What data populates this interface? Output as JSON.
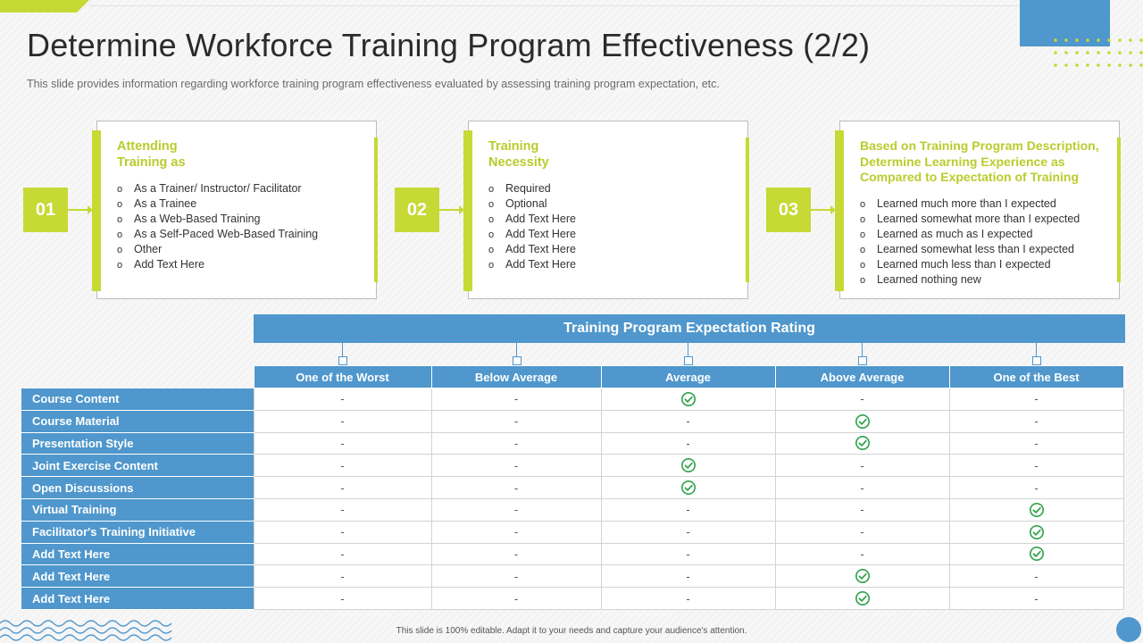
{
  "title": "Determine Workforce Training Program Effectiveness (2/2)",
  "subtitle": "This slide provides  information  regarding  workforce  training  program  effectiveness  evaluated  by assessing training program expectation, etc.",
  "colors": {
    "accent_green": "#c6d935",
    "accent_blue": "#4f97cc",
    "check_green": "#2fa24a"
  },
  "cards": [
    {
      "number": "01",
      "title_lines": [
        "Attending",
        "Training as"
      ],
      "items": [
        "As a Trainer/  Instructor/ Facilitator",
        "As a Trainee",
        "As a Web-Based Training",
        "As a Self-Paced Web-Based Training",
        "Other",
        "Add Text Here"
      ]
    },
    {
      "number": "02",
      "title_lines": [
        "Training",
        "Necessity"
      ],
      "items": [
        "Required",
        "Optional",
        "Add Text Here",
        "Add Text Here",
        "Add Text Here",
        "Add Text Here"
      ]
    },
    {
      "number": "03",
      "title_lines": [
        "Based on Training Program Description,",
        "Determine Learning Experience as",
        "Compared to Expectation of Training"
      ],
      "items": [
        "Learned much more than I expected",
        "Learned somewhat more than I expected",
        "Learned as much as I expected",
        "Learned somewhat less than I expected",
        "Learned much less than I expected",
        "Learned nothing new"
      ]
    }
  ],
  "bullet_glyph": "o",
  "rating": {
    "header": "Training Program Expectation Rating",
    "columns": [
      "One of the Worst",
      "Below Average",
      "Average",
      "Above Average",
      "One of the Best"
    ],
    "empty_mark": "-",
    "check_icon": "check-circle-icon",
    "rows": [
      {
        "label": "Course Content",
        "selected": 2
      },
      {
        "label": "Course Material",
        "selected": 3
      },
      {
        "label": "Presentation Style",
        "selected": 3
      },
      {
        "label": "Joint Exercise Content",
        "selected": 2
      },
      {
        "label": "Open Discussions",
        "selected": 2
      },
      {
        "label": "Virtual Training",
        "selected": 4
      },
      {
        "label": "Facilitator's Training Initiative",
        "selected": 4
      },
      {
        "label": "Add Text Here",
        "selected": 4
      },
      {
        "label": "Add Text Here",
        "selected": 3
      },
      {
        "label": "Add Text Here",
        "selected": 3
      }
    ]
  },
  "footer": "This slide is 100% editable. Adapt it to your needs and capture your audience's attention."
}
